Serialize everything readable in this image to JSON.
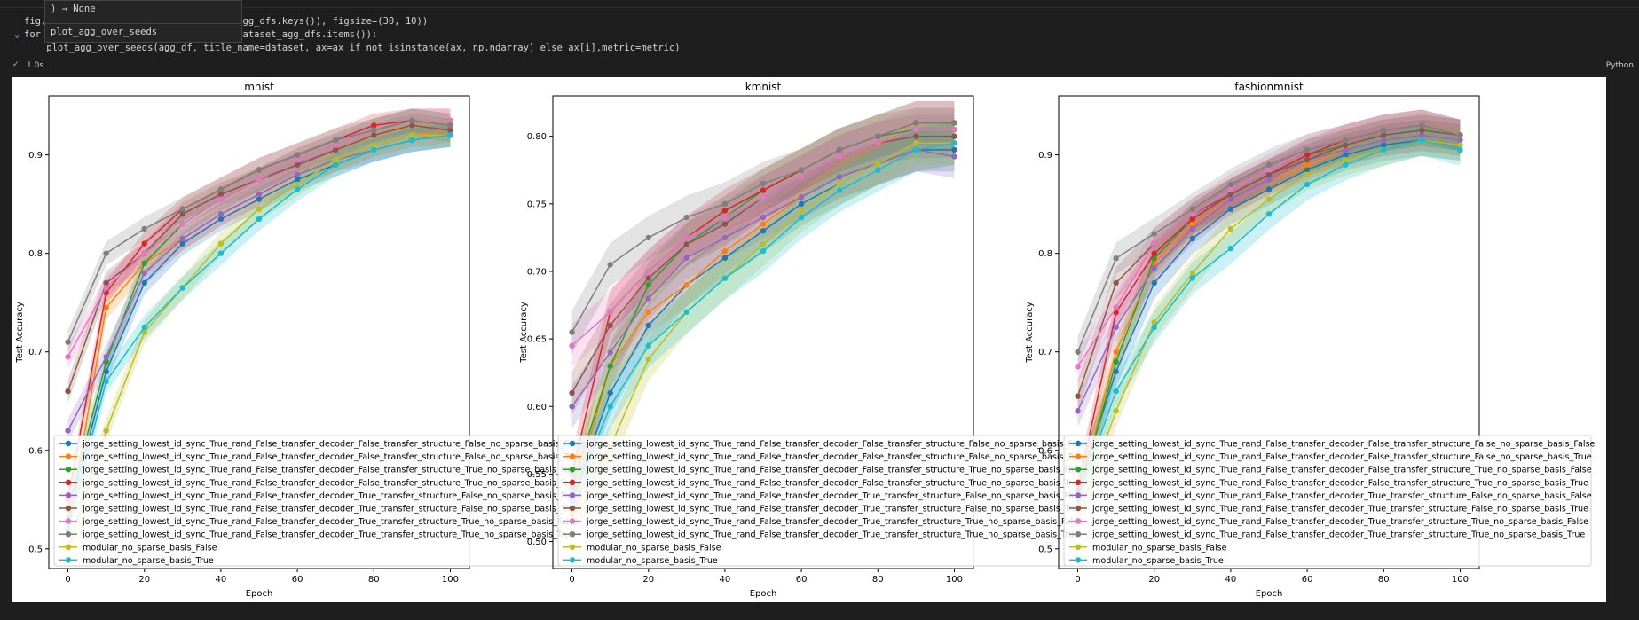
{
  "code_lines": [
    "fig, ax = plt.subplots(1, len(dataset_agg_dfs.keys()), figsize=(30, 10))",
    "for i, (dataset, agg_df) in enumerate(dataset_agg_dfs.items()):",
    "    plot_agg_over_seeds(agg_df, title_name=dataset, ax=ax if not isinstance(ax, np.ndarray) else ax[i],metric=metric)"
  ],
  "hover": {
    "signature": ") → None",
    "return_type": "None",
    "name": "plot_agg_over_seeds"
  },
  "cell_status": {
    "elapsed": "1.0s",
    "language": "Python"
  },
  "legend_labels": [
    "jorge_setting_lowest_id_sync_True_rand_False_transfer_decoder_False_transfer_structure_False_no_sparse_basis_False",
    "jorge_setting_lowest_id_sync_True_rand_False_transfer_decoder_False_transfer_structure_False_no_sparse_basis_True",
    "jorge_setting_lowest_id_sync_True_rand_False_transfer_decoder_False_transfer_structure_True_no_sparse_basis_False",
    "jorge_setting_lowest_id_sync_True_rand_False_transfer_decoder_False_transfer_structure_True_no_sparse_basis_True",
    "jorge_setting_lowest_id_sync_True_rand_False_transfer_decoder_True_transfer_structure_False_no_sparse_basis_False",
    "jorge_setting_lowest_id_sync_True_rand_False_transfer_decoder_True_transfer_structure_False_no_sparse_basis_True",
    "jorge_setting_lowest_id_sync_True_rand_False_transfer_decoder_True_transfer_structure_True_no_sparse_basis_False",
    "jorge_setting_lowest_id_sync_True_rand_False_transfer_decoder_True_transfer_structure_True_no_sparse_basis_True",
    "modular_no_sparse_basis_False",
    "modular_no_sparse_basis_True"
  ],
  "colors": [
    "#1f77b4",
    "#ff7f0e",
    "#2ca02c",
    "#d62728",
    "#9467bd",
    "#8c564b",
    "#e377c2",
    "#7f7f7f",
    "#bcbd22",
    "#17becf"
  ],
  "chart_data": [
    {
      "type": "line",
      "title": "mnist",
      "xlabel": "Epoch",
      "ylabel": "Test Accuracy",
      "xlim": [
        -5,
        105
      ],
      "ylim": [
        0.48,
        0.96
      ],
      "xticks": [
        0,
        20,
        40,
        60,
        80,
        100
      ],
      "xtick_labels": [
        "0",
        "20",
        "40",
        "60",
        "80",
        "100"
      ],
      "yticks": [
        0.5,
        0.6,
        0.7,
        0.8,
        0.9
      ],
      "ytick_labels": [
        "0.5",
        "0.6",
        "0.7",
        "0.8",
        "0.9"
      ],
      "legend": "lower-left",
      "x": [
        0,
        10,
        20,
        30,
        40,
        50,
        60,
        70,
        80,
        90,
        100
      ],
      "series": [
        {
          "name": "jorge_setting_lowest_id_sync_True_rand_False_transfer_decoder_False_transfer_structure_False_no_sparse_basis_False",
          "values": [
            0.53,
            0.68,
            0.77,
            0.81,
            0.835,
            0.855,
            0.875,
            0.89,
            0.905,
            0.915,
            0.92
          ]
        },
        {
          "name": "jorge_setting_lowest_id_sync_True_rand_False_transfer_decoder_False_transfer_structure_False_no_sparse_basis_True",
          "values": [
            0.52,
            0.745,
            0.79,
            0.815,
            0.84,
            0.86,
            0.88,
            0.895,
            0.91,
            0.92,
            0.925
          ]
        },
        {
          "name": "jorge_setting_lowest_id_sync_True_rand_False_transfer_decoder_False_transfer_structure_True_no_sparse_basis_False",
          "values": [
            0.54,
            0.69,
            0.79,
            0.83,
            0.855,
            0.875,
            0.895,
            0.91,
            0.925,
            0.935,
            0.93
          ]
        },
        {
          "name": "jorge_setting_lowest_id_sync_True_rand_False_transfer_decoder_False_transfer_structure_True_no_sparse_basis_True",
          "values": [
            0.55,
            0.76,
            0.81,
            0.845,
            0.865,
            0.885,
            0.9,
            0.915,
            0.93,
            0.935,
            0.935
          ]
        },
        {
          "name": "jorge_setting_lowest_id_sync_True_rand_False_transfer_decoder_True_transfer_structure_False_no_sparse_basis_False",
          "values": [
            0.62,
            0.695,
            0.78,
            0.815,
            0.84,
            0.86,
            0.88,
            0.895,
            0.905,
            0.915,
            0.92
          ]
        },
        {
          "name": "jorge_setting_lowest_id_sync_True_rand_False_transfer_decoder_True_transfer_structure_False_no_sparse_basis_True",
          "values": [
            0.66,
            0.77,
            0.8,
            0.84,
            0.86,
            0.875,
            0.89,
            0.905,
            0.92,
            0.93,
            0.925
          ]
        },
        {
          "name": "jorge_setting_lowest_id_sync_True_rand_False_transfer_decoder_True_transfer_structure_True_no_sparse_basis_False",
          "values": [
            0.695,
            0.765,
            0.8,
            0.83,
            0.855,
            0.875,
            0.895,
            0.91,
            0.925,
            0.935,
            0.935
          ]
        },
        {
          "name": "jorge_setting_lowest_id_sync_True_rand_False_transfer_decoder_True_transfer_structure_True_no_sparse_basis_True",
          "values": [
            0.71,
            0.8,
            0.825,
            0.845,
            0.865,
            0.885,
            0.9,
            0.915,
            0.925,
            0.935,
            0.93
          ]
        },
        {
          "name": "modular_no_sparse_basis_False",
          "values": [
            0.5,
            0.62,
            0.72,
            0.765,
            0.81,
            0.845,
            0.87,
            0.895,
            0.91,
            0.92,
            0.92
          ]
        },
        {
          "name": "modular_no_sparse_basis_True",
          "values": [
            0.52,
            0.67,
            0.725,
            0.765,
            0.8,
            0.835,
            0.865,
            0.89,
            0.905,
            0.915,
            0.92
          ]
        }
      ]
    },
    {
      "type": "line",
      "title": "kmnist",
      "xlabel": "Epoch",
      "ylabel": "Test Accuracy",
      "xlim": [
        -5,
        105
      ],
      "ylim": [
        0.48,
        0.83
      ],
      "xticks": [
        0,
        20,
        40,
        60,
        80,
        100
      ],
      "xtick_labels": [
        "0",
        "20",
        "40",
        "60",
        "80",
        "100"
      ],
      "yticks": [
        0.5,
        0.55,
        0.6,
        0.65,
        0.7,
        0.75,
        0.8
      ],
      "ytick_labels": [
        "0.50",
        "0.55",
        "0.60",
        "0.65",
        "0.70",
        "0.75",
        "0.80"
      ],
      "legend": "lower-left",
      "x": [
        0,
        10,
        20,
        30,
        40,
        50,
        60,
        70,
        80,
        90,
        100
      ],
      "series": [
        {
          "name": "jorge_setting_lowest_id_sync_True_rand_False_transfer_decoder_False_transfer_structure_False_no_sparse_basis_False",
          "values": [
            0.53,
            0.61,
            0.66,
            0.69,
            0.71,
            0.73,
            0.75,
            0.765,
            0.78,
            0.79,
            0.79
          ]
        },
        {
          "name": "jorge_setting_lowest_id_sync_True_rand_False_transfer_decoder_False_transfer_structure_False_no_sparse_basis_True",
          "values": [
            0.53,
            0.63,
            0.67,
            0.69,
            0.715,
            0.735,
            0.755,
            0.77,
            0.78,
            0.79,
            0.795
          ]
        },
        {
          "name": "jorge_setting_lowest_id_sync_True_rand_False_transfer_decoder_False_transfer_structure_True_no_sparse_basis_False",
          "values": [
            0.54,
            0.63,
            0.69,
            0.72,
            0.74,
            0.76,
            0.775,
            0.79,
            0.8,
            0.805,
            0.805
          ]
        },
        {
          "name": "jorge_setting_lowest_id_sync_True_rand_False_transfer_decoder_False_transfer_structure_True_no_sparse_basis_True",
          "values": [
            0.55,
            0.67,
            0.7,
            0.725,
            0.745,
            0.76,
            0.775,
            0.79,
            0.8,
            0.81,
            0.81
          ]
        },
        {
          "name": "jorge_setting_lowest_id_sync_True_rand_False_transfer_decoder_True_transfer_structure_False_no_sparse_basis_False",
          "values": [
            0.6,
            0.64,
            0.68,
            0.71,
            0.725,
            0.74,
            0.755,
            0.77,
            0.78,
            0.79,
            0.785
          ]
        },
        {
          "name": "jorge_setting_lowest_id_sync_True_rand_False_transfer_decoder_True_transfer_structure_False_no_sparse_basis_True",
          "values": [
            0.61,
            0.66,
            0.695,
            0.72,
            0.735,
            0.755,
            0.77,
            0.785,
            0.795,
            0.8,
            0.8
          ]
        },
        {
          "name": "jorge_setting_lowest_id_sync_True_rand_False_transfer_decoder_True_transfer_structure_True_no_sparse_basis_False",
          "values": [
            0.645,
            0.67,
            0.7,
            0.725,
            0.74,
            0.755,
            0.77,
            0.785,
            0.795,
            0.805,
            0.805
          ]
        },
        {
          "name": "jorge_setting_lowest_id_sync_True_rand_False_transfer_decoder_True_transfer_structure_True_no_sparse_basis_True",
          "values": [
            0.655,
            0.705,
            0.725,
            0.74,
            0.75,
            0.765,
            0.775,
            0.79,
            0.8,
            0.81,
            0.81
          ]
        },
        {
          "name": "modular_no_sparse_basis_False",
          "values": [
            0.52,
            0.57,
            0.635,
            0.67,
            0.695,
            0.72,
            0.745,
            0.765,
            0.78,
            0.795,
            0.795
          ]
        },
        {
          "name": "modular_no_sparse_basis_True",
          "values": [
            0.53,
            0.6,
            0.645,
            0.67,
            0.695,
            0.715,
            0.74,
            0.76,
            0.775,
            0.79,
            0.795
          ]
        }
      ]
    },
    {
      "type": "line",
      "title": "fashionmnist",
      "xlabel": "Epoch",
      "ylabel": "Test Accuracy",
      "xlim": [
        -5,
        105
      ],
      "ylim": [
        0.48,
        0.96
      ],
      "xticks": [
        0,
        20,
        40,
        60,
        80,
        100
      ],
      "xtick_labels": [
        "0",
        "20",
        "40",
        "60",
        "80",
        "100"
      ],
      "yticks": [
        0.5,
        0.6,
        0.7,
        0.8,
        0.9
      ],
      "ytick_labels": [
        "0.5",
        "0.6",
        "0.7",
        "0.8",
        "0.9"
      ],
      "legend": "lower-left",
      "x": [
        0,
        10,
        20,
        30,
        40,
        50,
        60,
        70,
        80,
        90,
        100
      ],
      "series": [
        {
          "name": "jorge_setting_lowest_id_sync_True_rand_False_transfer_decoder_False_transfer_structure_False_no_sparse_basis_False",
          "values": [
            0.56,
            0.68,
            0.77,
            0.815,
            0.845,
            0.865,
            0.885,
            0.9,
            0.91,
            0.915,
            0.91
          ]
        },
        {
          "name": "jorge_setting_lowest_id_sync_True_rand_False_transfer_decoder_False_transfer_structure_False_no_sparse_basis_True",
          "values": [
            0.55,
            0.7,
            0.79,
            0.83,
            0.855,
            0.875,
            0.89,
            0.905,
            0.915,
            0.92,
            0.915
          ]
        },
        {
          "name": "jorge_setting_lowest_id_sync_True_rand_False_transfer_decoder_False_transfer_structure_True_no_sparse_basis_False",
          "values": [
            0.55,
            0.69,
            0.795,
            0.835,
            0.86,
            0.88,
            0.9,
            0.91,
            0.92,
            0.925,
            0.92
          ]
        },
        {
          "name": "jorge_setting_lowest_id_sync_True_rand_False_transfer_decoder_False_transfer_structure_True_no_sparse_basis_True",
          "values": [
            0.56,
            0.74,
            0.8,
            0.835,
            0.86,
            0.88,
            0.9,
            0.915,
            0.925,
            0.93,
            0.92
          ]
        },
        {
          "name": "jorge_setting_lowest_id_sync_True_rand_False_transfer_decoder_True_transfer_structure_False_no_sparse_basis_False",
          "values": [
            0.64,
            0.725,
            0.785,
            0.825,
            0.855,
            0.875,
            0.895,
            0.905,
            0.915,
            0.92,
            0.915
          ]
        },
        {
          "name": "jorge_setting_lowest_id_sync_True_rand_False_transfer_decoder_True_transfer_structure_False_no_sparse_basis_True",
          "values": [
            0.655,
            0.77,
            0.81,
            0.84,
            0.86,
            0.88,
            0.895,
            0.91,
            0.92,
            0.925,
            0.92
          ]
        },
        {
          "name": "jorge_setting_lowest_id_sync_True_rand_False_transfer_decoder_True_transfer_structure_True_no_sparse_basis_False",
          "values": [
            0.685,
            0.745,
            0.81,
            0.84,
            0.865,
            0.885,
            0.905,
            0.915,
            0.925,
            0.93,
            0.92
          ]
        },
        {
          "name": "jorge_setting_lowest_id_sync_True_rand_False_transfer_decoder_True_transfer_structure_True_no_sparse_basis_True",
          "values": [
            0.7,
            0.795,
            0.82,
            0.845,
            0.87,
            0.89,
            0.905,
            0.915,
            0.925,
            0.93,
            0.92
          ]
        },
        {
          "name": "modular_no_sparse_basis_False",
          "values": [
            0.53,
            0.64,
            0.73,
            0.78,
            0.825,
            0.855,
            0.88,
            0.895,
            0.905,
            0.915,
            0.91
          ]
        },
        {
          "name": "modular_no_sparse_basis_True",
          "values": [
            0.55,
            0.66,
            0.725,
            0.775,
            0.805,
            0.84,
            0.87,
            0.89,
            0.905,
            0.915,
            0.905
          ]
        }
      ]
    }
  ]
}
